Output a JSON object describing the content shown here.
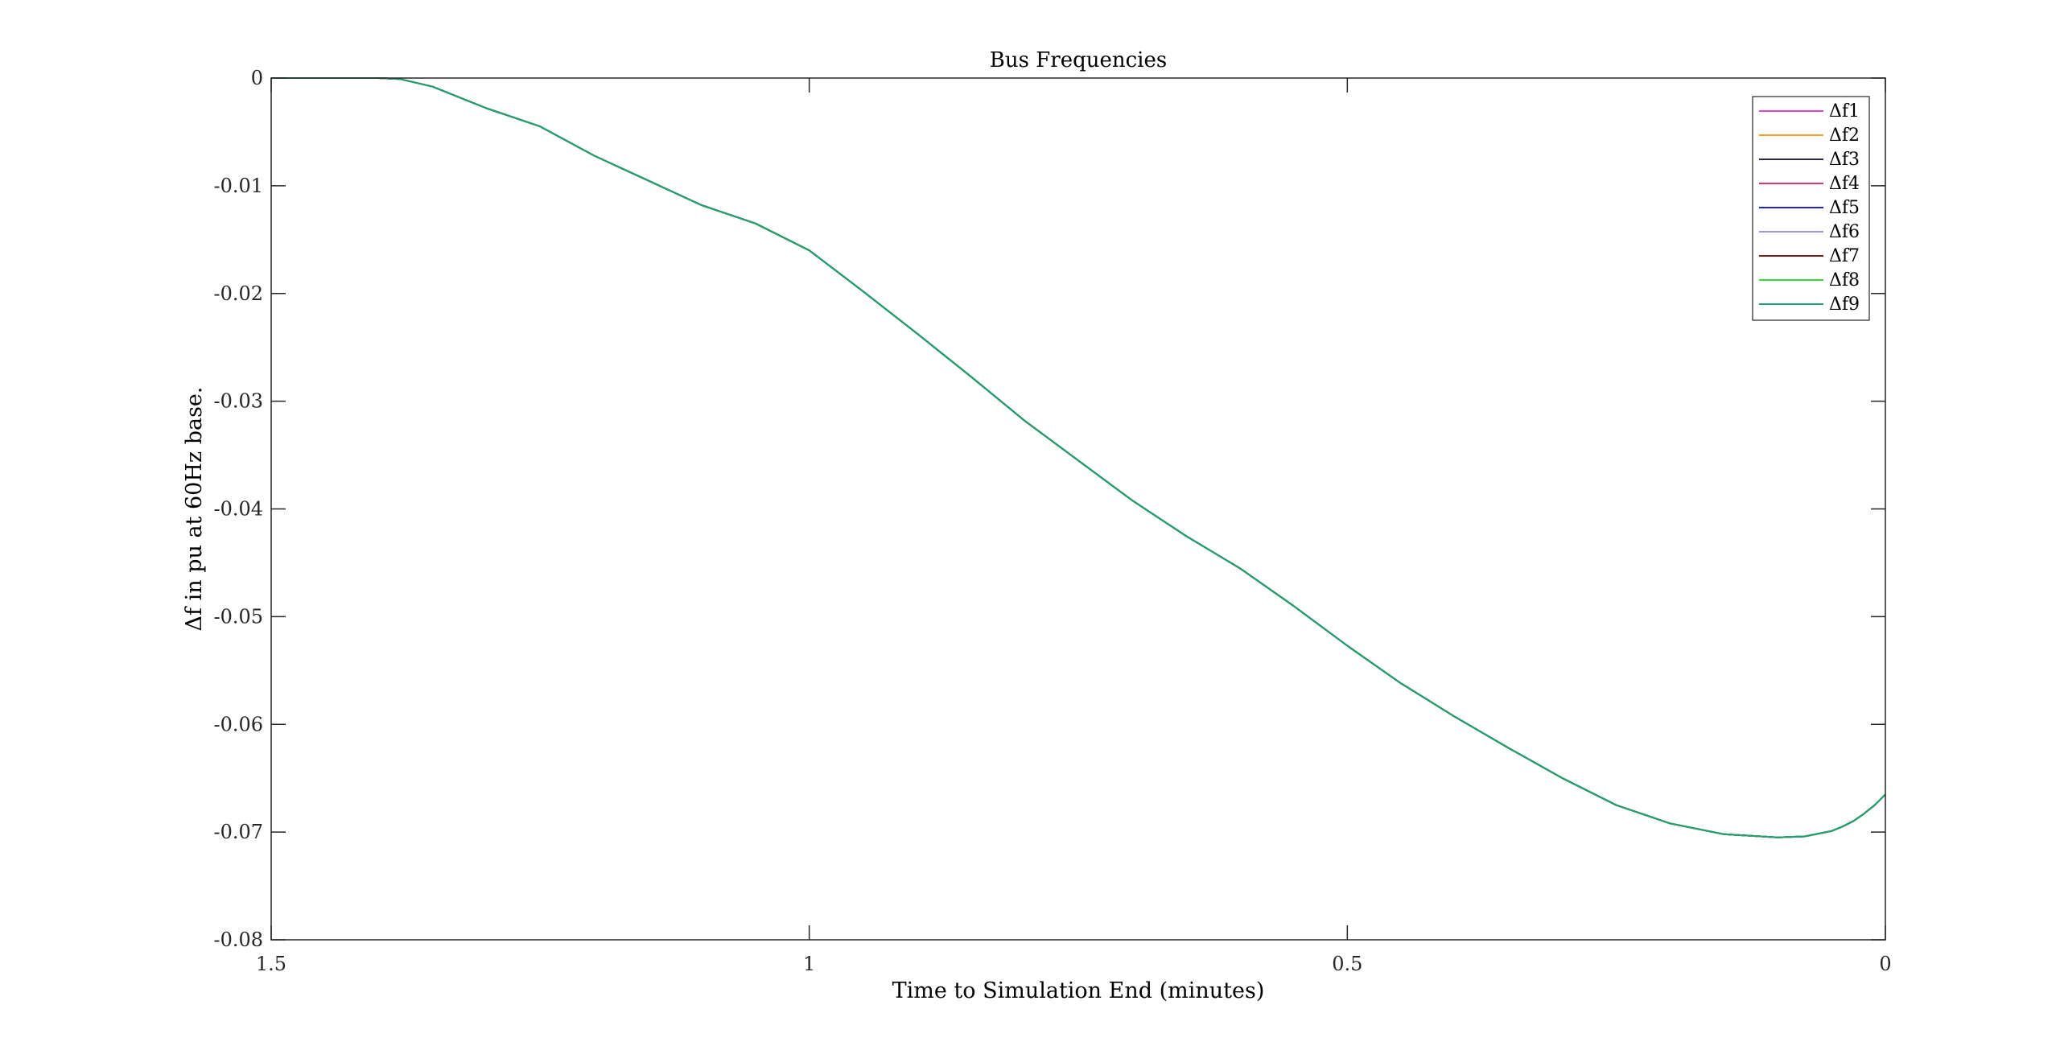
{
  "chart_data": {
    "type": "line",
    "title": "Bus Frequencies",
    "xlabel": "Time to Simulation End (minutes)",
    "ylabel": "Δf in pu at 60Hz base.",
    "xlim": [
      1.5,
      0
    ],
    "ylim": [
      -0.08,
      0
    ],
    "x_reversed": true,
    "grid": false,
    "legend_position": "top-right",
    "x_ticks": [
      "1.5",
      "1",
      "0.5",
      "0"
    ],
    "y_ticks": [
      "0",
      "-0.01",
      "-0.02",
      "-0.03",
      "-0.04",
      "-0.05",
      "-0.06",
      "-0.07",
      "-0.08"
    ],
    "x": [
      1.5,
      1.45,
      1.4,
      1.38,
      1.35,
      1.3,
      1.25,
      1.2,
      1.15,
      1.1,
      1.05,
      1.0,
      0.95,
      0.9,
      0.85,
      0.8,
      0.75,
      0.7,
      0.65,
      0.6,
      0.55,
      0.5,
      0.45,
      0.4,
      0.35,
      0.3,
      0.25,
      0.2,
      0.15,
      0.1,
      0.075,
      0.06,
      0.05,
      0.04,
      0.03,
      0.02,
      0.01,
      0.0
    ],
    "series": [
      {
        "name": "Δf1",
        "color": "#e040e0",
        "values": [
          0,
          0,
          0,
          -0.0001,
          -0.0008,
          -0.0028,
          -0.0045,
          -0.0072,
          -0.0095,
          -0.0118,
          -0.0135,
          -0.016,
          -0.0198,
          -0.0237,
          -0.0277,
          -0.0318,
          -0.0355,
          -0.0392,
          -0.0425,
          -0.0455,
          -0.049,
          -0.0527,
          -0.0562,
          -0.0593,
          -0.0622,
          -0.065,
          -0.0675,
          -0.0692,
          -0.0702,
          -0.0705,
          -0.0704,
          -0.0701,
          -0.0699,
          -0.0695,
          -0.069,
          -0.0683,
          -0.0675,
          -0.0665
        ]
      },
      {
        "name": "Δf2",
        "color": "#f0a030",
        "values": [
          0,
          0,
          0,
          -0.0001,
          -0.0008,
          -0.0028,
          -0.0045,
          -0.0072,
          -0.0095,
          -0.0118,
          -0.0135,
          -0.016,
          -0.0198,
          -0.0237,
          -0.0277,
          -0.0318,
          -0.0355,
          -0.0392,
          -0.0425,
          -0.0455,
          -0.049,
          -0.0527,
          -0.0562,
          -0.0593,
          -0.0622,
          -0.065,
          -0.0675,
          -0.0692,
          -0.0702,
          -0.0705,
          -0.0704,
          -0.0701,
          -0.0699,
          -0.0695,
          -0.069,
          -0.0683,
          -0.0675,
          -0.0665
        ]
      },
      {
        "name": "Δf3",
        "color": "#2a2a4a",
        "values": [
          0,
          0,
          0,
          -0.0001,
          -0.0008,
          -0.0028,
          -0.0045,
          -0.0072,
          -0.0095,
          -0.0118,
          -0.0135,
          -0.016,
          -0.0198,
          -0.0237,
          -0.0277,
          -0.0318,
          -0.0355,
          -0.0392,
          -0.0425,
          -0.0455,
          -0.049,
          -0.0527,
          -0.0562,
          -0.0593,
          -0.0622,
          -0.065,
          -0.0675,
          -0.0692,
          -0.0702,
          -0.0705,
          -0.0704,
          -0.0701,
          -0.0699,
          -0.0695,
          -0.069,
          -0.0683,
          -0.0675,
          -0.0665
        ]
      },
      {
        "name": "Δf4",
        "color": "#e8306a",
        "values": [
          0,
          0,
          0,
          -0.0001,
          -0.0008,
          -0.0028,
          -0.0045,
          -0.0072,
          -0.0095,
          -0.0118,
          -0.0135,
          -0.016,
          -0.0198,
          -0.0237,
          -0.0277,
          -0.0318,
          -0.0355,
          -0.0392,
          -0.0425,
          -0.0455,
          -0.049,
          -0.0527,
          -0.0562,
          -0.0593,
          -0.0622,
          -0.065,
          -0.0675,
          -0.0692,
          -0.0702,
          -0.0705,
          -0.0704,
          -0.0701,
          -0.0699,
          -0.0695,
          -0.069,
          -0.0683,
          -0.0675,
          -0.0665
        ]
      },
      {
        "name": "Δf5",
        "color": "#2020e0",
        "values": [
          0,
          0,
          0,
          -0.0001,
          -0.0008,
          -0.0028,
          -0.0045,
          -0.0072,
          -0.0095,
          -0.0118,
          -0.0135,
          -0.016,
          -0.0198,
          -0.0237,
          -0.0277,
          -0.0318,
          -0.0355,
          -0.0392,
          -0.0425,
          -0.0455,
          -0.049,
          -0.0527,
          -0.0562,
          -0.0593,
          -0.0622,
          -0.065,
          -0.0675,
          -0.0692,
          -0.0702,
          -0.0705,
          -0.0704,
          -0.0701,
          -0.0699,
          -0.0695,
          -0.069,
          -0.0683,
          -0.0675,
          -0.0665
        ]
      },
      {
        "name": "Δf6",
        "color": "#a890e0",
        "values": [
          0,
          0,
          0,
          -0.0001,
          -0.0008,
          -0.0028,
          -0.0045,
          -0.0072,
          -0.0095,
          -0.0118,
          -0.0135,
          -0.016,
          -0.0198,
          -0.0237,
          -0.0277,
          -0.0318,
          -0.0355,
          -0.0392,
          -0.0425,
          -0.0455,
          -0.049,
          -0.0527,
          -0.0562,
          -0.0593,
          -0.0622,
          -0.065,
          -0.0675,
          -0.0692,
          -0.0702,
          -0.0705,
          -0.0704,
          -0.0701,
          -0.0699,
          -0.0695,
          -0.069,
          -0.0683,
          -0.0675,
          -0.0665
        ]
      },
      {
        "name": "Δf7",
        "color": "#7a1a1a",
        "values": [
          0,
          0,
          0,
          -0.0001,
          -0.0008,
          -0.0028,
          -0.0045,
          -0.0072,
          -0.0095,
          -0.0118,
          -0.0135,
          -0.016,
          -0.0198,
          -0.0237,
          -0.0277,
          -0.0318,
          -0.0355,
          -0.0392,
          -0.0425,
          -0.0455,
          -0.049,
          -0.0527,
          -0.0562,
          -0.0593,
          -0.0622,
          -0.065,
          -0.0675,
          -0.0692,
          -0.0702,
          -0.0705,
          -0.0704,
          -0.0701,
          -0.0699,
          -0.0695,
          -0.069,
          -0.0683,
          -0.0675,
          -0.0665
        ]
      },
      {
        "name": "Δf8",
        "color": "#30e030",
        "values": [
          0,
          0,
          0,
          -0.0001,
          -0.0008,
          -0.0028,
          -0.0045,
          -0.0072,
          -0.0095,
          -0.0118,
          -0.0135,
          -0.016,
          -0.0198,
          -0.0237,
          -0.0277,
          -0.0318,
          -0.0355,
          -0.0392,
          -0.0425,
          -0.0455,
          -0.049,
          -0.0527,
          -0.0562,
          -0.0593,
          -0.0622,
          -0.065,
          -0.0675,
          -0.0692,
          -0.0702,
          -0.0705,
          -0.0704,
          -0.0701,
          -0.0699,
          -0.0695,
          -0.069,
          -0.0683,
          -0.0675,
          -0.0665
        ]
      },
      {
        "name": "Δf9",
        "color": "#20a070",
        "values": [
          0,
          0,
          0,
          -0.0001,
          -0.0008,
          -0.0028,
          -0.0045,
          -0.0072,
          -0.0095,
          -0.0118,
          -0.0135,
          -0.016,
          -0.0198,
          -0.0237,
          -0.0277,
          -0.0318,
          -0.0355,
          -0.0392,
          -0.0425,
          -0.0455,
          -0.049,
          -0.0527,
          -0.0562,
          -0.0593,
          -0.0622,
          -0.065,
          -0.0675,
          -0.0692,
          -0.0702,
          -0.0705,
          -0.0704,
          -0.0701,
          -0.0699,
          -0.0695,
          -0.069,
          -0.0683,
          -0.0675,
          -0.0665
        ]
      }
    ]
  }
}
